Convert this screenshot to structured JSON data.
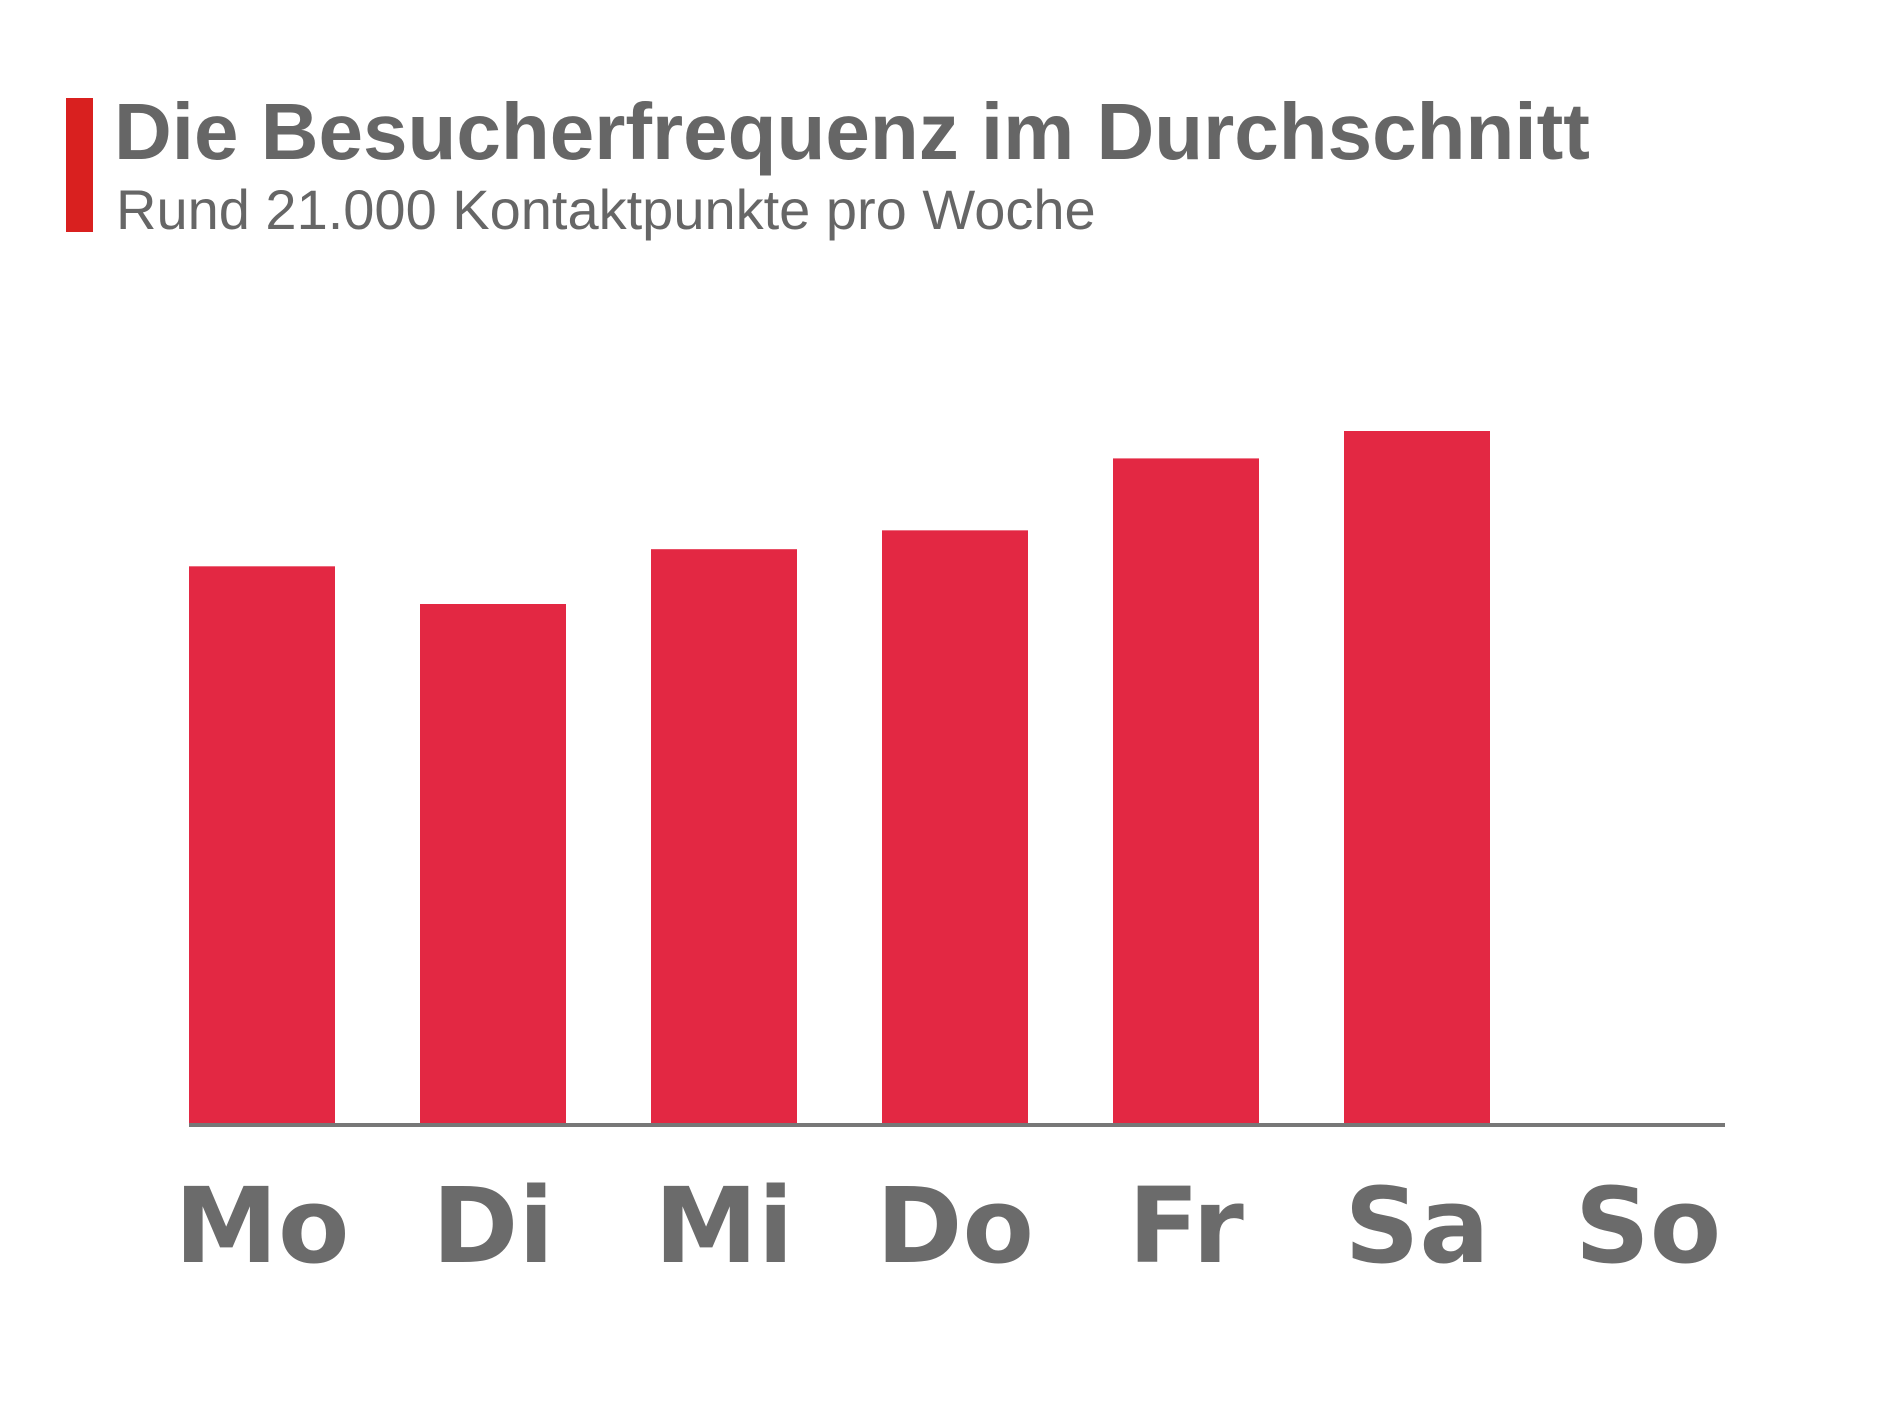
{
  "chart_data": {
    "type": "bar",
    "title": "Die Besucherfrequenz im Durchschnitt",
    "subtitle": "Rund 21.000 Kontaktpunkte pro Woche",
    "categories": [
      "Mo",
      "Di",
      "Mi",
      "Do",
      "Fr",
      "Sa",
      "So"
    ],
    "values": [
      3250,
      3030,
      3350,
      3460,
      3880,
      4040,
      null
    ],
    "color": "#e32843"
  }
}
